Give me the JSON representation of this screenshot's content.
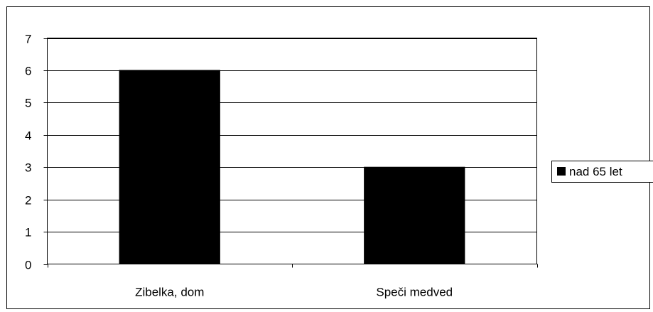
{
  "chart_data": {
    "type": "bar",
    "categories": [
      "Zibelka, dom",
      "Speči medved"
    ],
    "series": [
      {
        "name": "nad 65 let",
        "values": [
          6,
          3
        ],
        "color": "#000000"
      }
    ],
    "title": "",
    "xlabel": "",
    "ylabel": "",
    "ylim": [
      0,
      7
    ],
    "yticks": [
      0,
      1,
      2,
      3,
      4,
      5,
      6,
      7
    ],
    "grid": true,
    "legend_position": "right",
    "plot_background": "#ffffff",
    "gridline_color": "#000000"
  }
}
